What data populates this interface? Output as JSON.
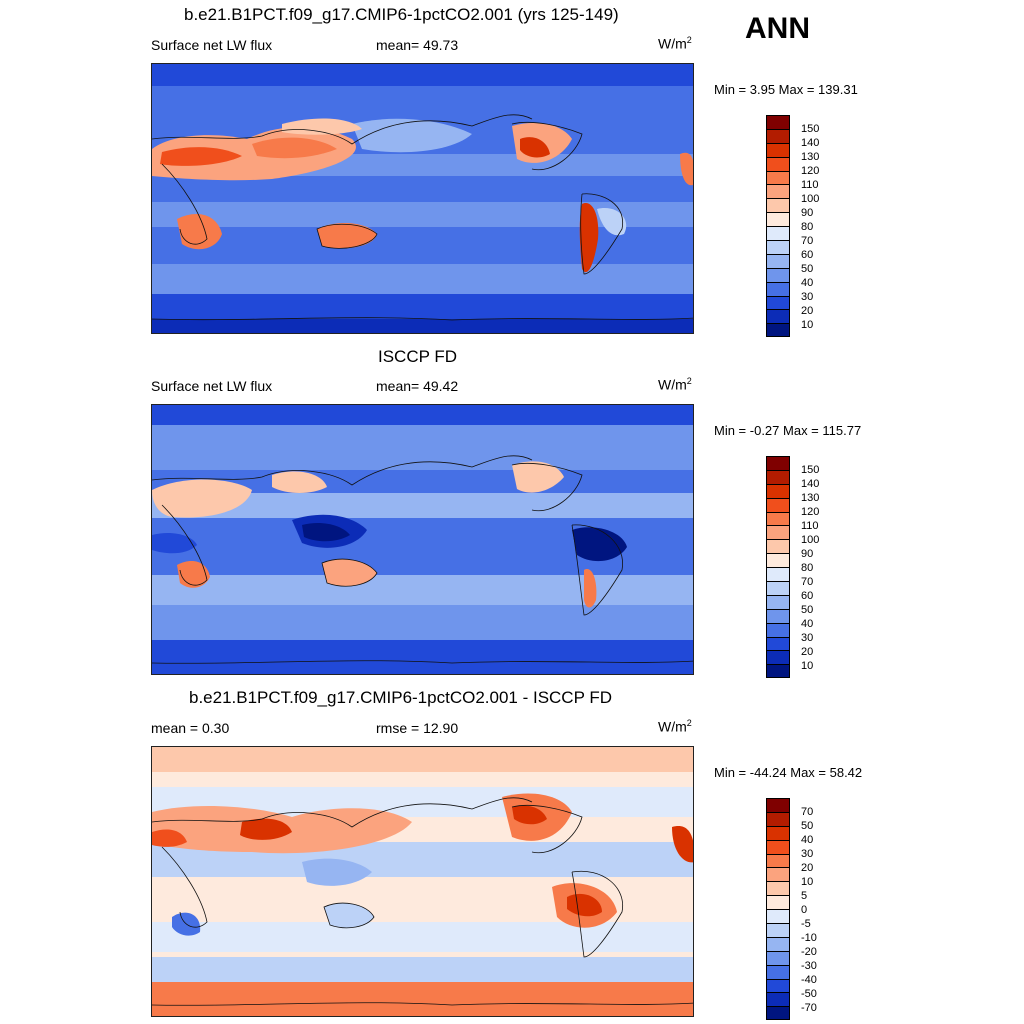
{
  "season": "ANN",
  "panels": [
    {
      "title": "b.e21.B1PCT.f09_g17.CMIP6-1pctCO2.001 (yrs 125-149)",
      "left": "Surface net LW flux",
      "center": "mean=  49.73",
      "unit_base": "W/m",
      "unit_exp": "2",
      "minmax": "Min =   3.95 Max = 139.31",
      "colorbar_labels": [
        "150",
        "140",
        "130",
        "120",
        "110",
        "100",
        "90",
        "80",
        "70",
        "60",
        "50",
        "40",
        "30",
        "20",
        "10"
      ],
      "colors": [
        "#7f0000",
        "#b21c00",
        "#d93200",
        "#f04f1c",
        "#f77a4a",
        "#fba37e",
        "#fdc8ab",
        "#feeadd",
        "#dfeafb",
        "#bcd2f7",
        "#96b5f2",
        "#6f95ec",
        "#4670e5",
        "#2149d8",
        "#0c2cb7",
        "#001580"
      ]
    },
    {
      "title": "ISCCP FD",
      "left": "Surface net LW flux",
      "center": "mean=  49.42",
      "unit_base": "W/m",
      "unit_exp": "2",
      "minmax": "Min =  -0.27 Max = 115.77",
      "colorbar_labels": [
        "150",
        "140",
        "130",
        "120",
        "110",
        "100",
        "90",
        "80",
        "70",
        "60",
        "50",
        "40",
        "30",
        "20",
        "10"
      ],
      "colors": [
        "#7f0000",
        "#b21c00",
        "#d93200",
        "#f04f1c",
        "#f77a4a",
        "#fba37e",
        "#fdc8ab",
        "#feeadd",
        "#dfeafb",
        "#bcd2f7",
        "#96b5f2",
        "#6f95ec",
        "#4670e5",
        "#2149d8",
        "#0c2cb7",
        "#001580"
      ]
    },
    {
      "title": "b.e21.B1PCT.f09_g17.CMIP6-1pctCO2.001 - ISCCP FD",
      "left": "mean =   0.30",
      "center": "rmse =  12.90",
      "unit_base": "W/m",
      "unit_exp": "2",
      "minmax": "Min = -44.24 Max =  58.42",
      "colorbar_labels": [
        "70",
        "50",
        "40",
        "30",
        "20",
        "10",
        "5",
        "0",
        "-5",
        "-10",
        "-20",
        "-30",
        "-40",
        "-50",
        "-70"
      ],
      "colors": [
        "#7f0000",
        "#b21c00",
        "#d93200",
        "#f04f1c",
        "#f77a4a",
        "#fba37e",
        "#fdc8ab",
        "#feeadd",
        "#dfeafb",
        "#bcd2f7",
        "#96b5f2",
        "#6f95ec",
        "#4670e5",
        "#2149d8",
        "#0c2cb7",
        "#001580"
      ]
    }
  ]
}
